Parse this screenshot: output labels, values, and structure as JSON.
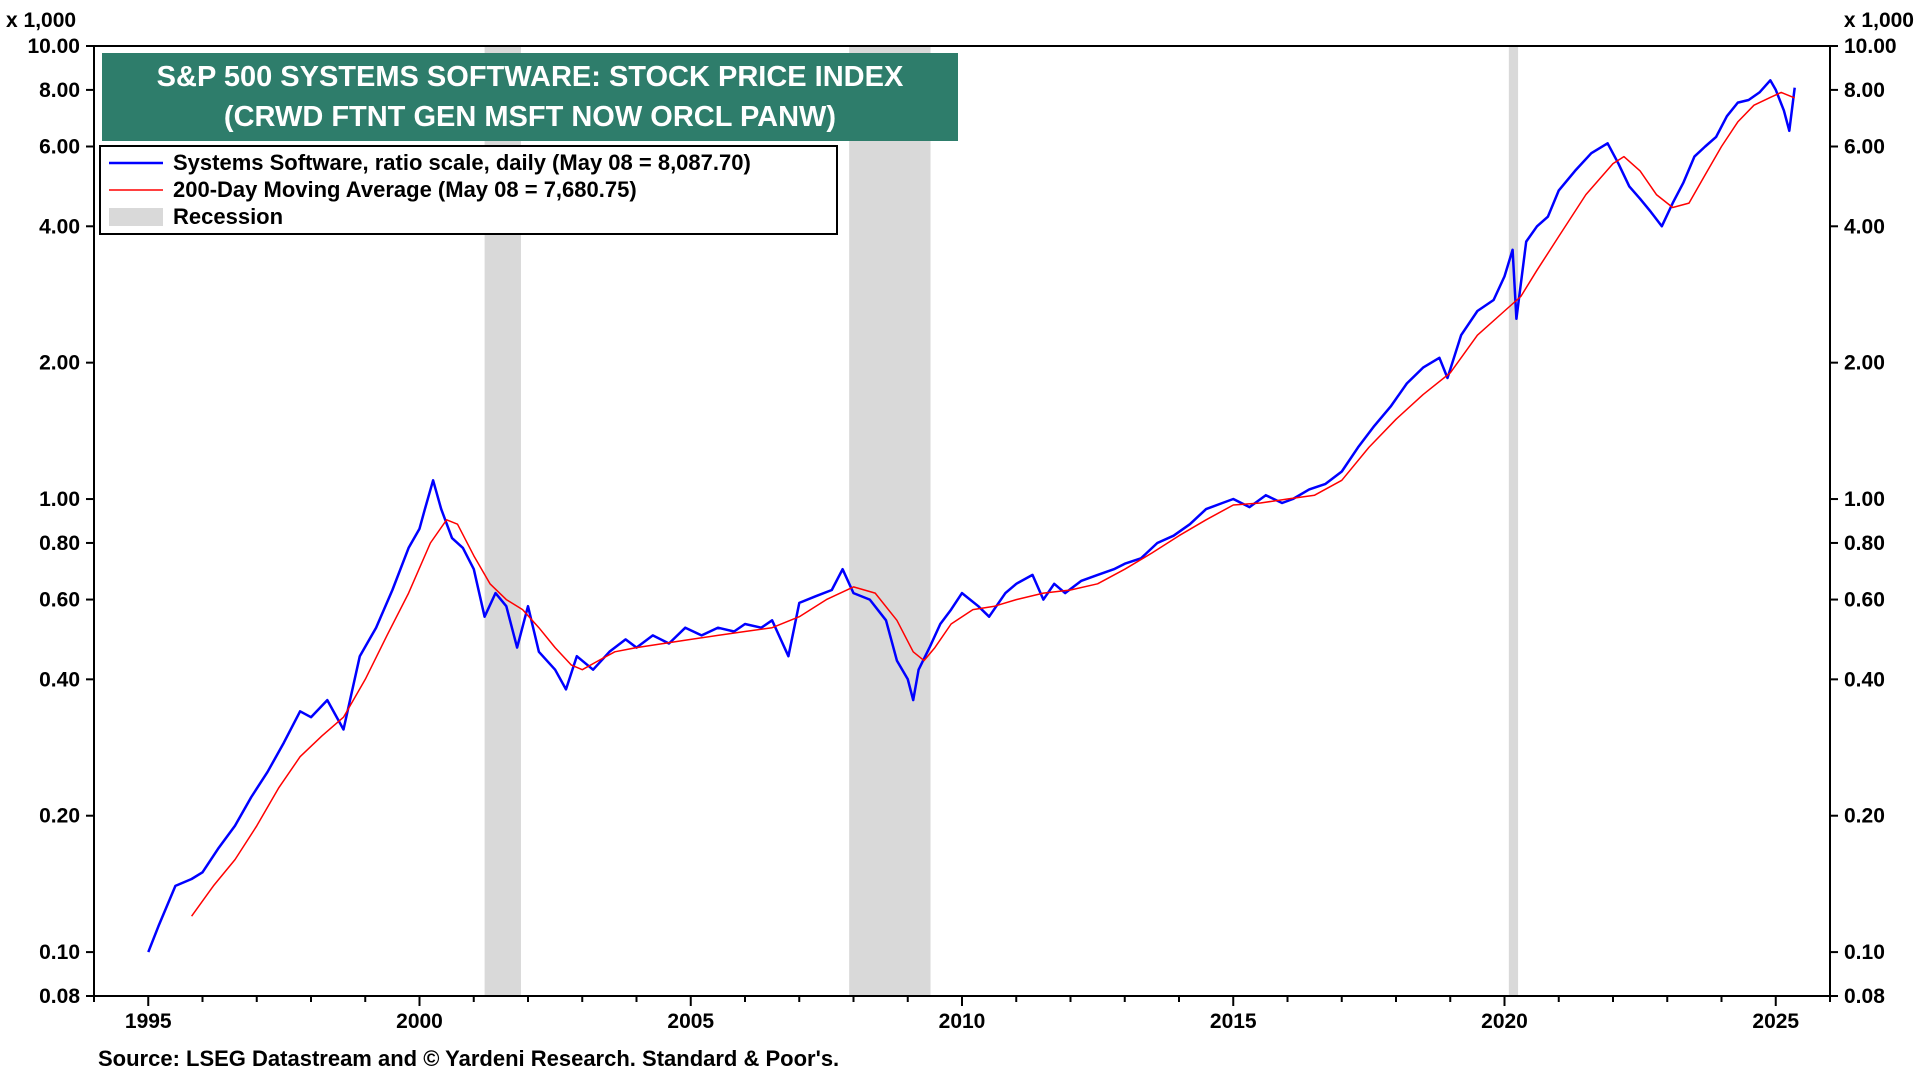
{
  "title_line1": "S&P 500 SYSTEMS SOFTWARE: STOCK PRICE INDEX",
  "title_line2": "(CRWD FTNT GEN MSFT NOW ORCL PANW)",
  "unit_label": "x 1,000",
  "source": "Source: LSEG Datastream and © Yardeni Research. Standard & Poor's.",
  "legend": {
    "series1": "Systems Software, ratio scale, daily (May 08 = 8,087.70)",
    "series2": "200-Day Moving Average (May 08 = 7,680.75)",
    "recession": "Recession"
  },
  "colors": {
    "series1": "#0000ff",
    "series2": "#ff0000",
    "recession": "#d9d9d9",
    "title_bg": "#2e7d6b"
  },
  "chart_data": {
    "type": "line",
    "title": "S&P 500 SYSTEMS SOFTWARE: STOCK PRICE INDEX (CRWD FTNT GEN MSFT NOW ORCL PANW)",
    "yscale": "log",
    "ylim": [
      0.08,
      10.0
    ],
    "xlim": [
      1994.0,
      2026.0
    ],
    "y_ticks": [
      "0.08",
      "0.10",
      "0.20",
      "0.40",
      "0.60",
      "0.80",
      "1.00",
      "2.00",
      "4.00",
      "6.00",
      "8.00",
      "10.00"
    ],
    "y_tick_values": [
      0.08,
      0.1,
      0.2,
      0.4,
      0.6,
      0.8,
      1.0,
      2.0,
      4.0,
      6.0,
      8.0,
      10.0
    ],
    "x_ticks": [
      "1995",
      "2000",
      "2005",
      "2010",
      "2015",
      "2020",
      "2025"
    ],
    "x_tick_values": [
      1995,
      2000,
      2005,
      2010,
      2015,
      2020,
      2025
    ],
    "recessions": [
      [
        2001.2,
        2001.87
      ],
      [
        2007.92,
        2009.42
      ],
      [
        2020.08,
        2020.25
      ]
    ],
    "legend_position": "top-left",
    "series": [
      {
        "name": "Systems Software, ratio scale, daily (May 08 = 8,087.70)",
        "color": "#0000ff",
        "x": [
          1995.0,
          1995.2,
          1995.5,
          1995.8,
          1996.0,
          1996.3,
          1996.6,
          1996.9,
          1997.2,
          1997.5,
          1997.8,
          1998.0,
          1998.3,
          1998.6,
          1998.9,
          1999.2,
          1999.5,
          1999.8,
          2000.0,
          2000.1,
          2000.25,
          2000.4,
          2000.6,
          2000.8,
          2001.0,
          2001.2,
          2001.4,
          2001.6,
          2001.8,
          2002.0,
          2002.2,
          2002.5,
          2002.7,
          2002.9,
          2003.2,
          2003.5,
          2003.8,
          2004.0,
          2004.3,
          2004.6,
          2004.9,
          2005.2,
          2005.5,
          2005.8,
          2006.0,
          2006.3,
          2006.5,
          2006.8,
          2007.0,
          2007.3,
          2007.6,
          2007.8,
          2008.0,
          2008.3,
          2008.6,
          2008.8,
          2009.0,
          2009.1,
          2009.2,
          2009.4,
          2009.6,
          2009.8,
          2010.0,
          2010.3,
          2010.5,
          2010.8,
          2011.0,
          2011.3,
          2011.5,
          2011.7,
          2011.9,
          2012.2,
          2012.5,
          2012.8,
          2013.0,
          2013.3,
          2013.6,
          2013.9,
          2014.2,
          2014.5,
          2014.8,
          2015.0,
          2015.3,
          2015.6,
          2015.9,
          2016.1,
          2016.4,
          2016.7,
          2017.0,
          2017.3,
          2017.6,
          2017.9,
          2018.2,
          2018.5,
          2018.8,
          2018.95,
          2019.2,
          2019.5,
          2019.8,
          2020.0,
          2020.15,
          2020.22,
          2020.4,
          2020.6,
          2020.8,
          2021.0,
          2021.3,
          2021.6,
          2021.9,
          2022.1,
          2022.3,
          2022.5,
          2022.7,
          2022.9,
          2023.1,
          2023.3,
          2023.5,
          2023.7,
          2023.9,
          2024.1,
          2024.3,
          2024.5,
          2024.7,
          2024.9,
          2025.0,
          2025.15,
          2025.25,
          2025.35
        ],
        "y": [
          0.1,
          0.115,
          0.14,
          0.145,
          0.15,
          0.17,
          0.19,
          0.22,
          0.25,
          0.29,
          0.34,
          0.33,
          0.36,
          0.31,
          0.45,
          0.52,
          0.63,
          0.78,
          0.86,
          0.95,
          1.1,
          0.95,
          0.82,
          0.78,
          0.7,
          0.55,
          0.62,
          0.58,
          0.47,
          0.58,
          0.46,
          0.42,
          0.38,
          0.45,
          0.42,
          0.46,
          0.49,
          0.47,
          0.5,
          0.48,
          0.52,
          0.5,
          0.52,
          0.51,
          0.53,
          0.52,
          0.54,
          0.45,
          0.59,
          0.61,
          0.63,
          0.7,
          0.62,
          0.6,
          0.54,
          0.44,
          0.4,
          0.36,
          0.42,
          0.47,
          0.53,
          0.57,
          0.62,
          0.58,
          0.55,
          0.62,
          0.65,
          0.68,
          0.6,
          0.65,
          0.62,
          0.66,
          0.68,
          0.7,
          0.72,
          0.74,
          0.8,
          0.83,
          0.88,
          0.95,
          0.98,
          1.0,
          0.96,
          1.02,
          0.98,
          1.0,
          1.05,
          1.08,
          1.15,
          1.3,
          1.45,
          1.6,
          1.8,
          1.95,
          2.05,
          1.85,
          2.3,
          2.6,
          2.75,
          3.1,
          3.55,
          2.5,
          3.7,
          4.0,
          4.2,
          4.8,
          5.3,
          5.8,
          6.1,
          5.5,
          4.9,
          4.6,
          4.3,
          4.0,
          4.5,
          5.0,
          5.7,
          6.0,
          6.3,
          7.0,
          7.5,
          7.6,
          7.9,
          8.4,
          8.0,
          7.2,
          6.5,
          8.09
        ]
      },
      {
        "name": "200-Day Moving Average (May 08 = 7,680.75)",
        "color": "#ff0000",
        "x": [
          1995.8,
          1996.2,
          1996.6,
          1997.0,
          1997.4,
          1997.8,
          1998.2,
          1998.6,
          1999.0,
          1999.4,
          1999.8,
          2000.2,
          2000.5,
          2000.7,
          2001.0,
          2001.3,
          2001.6,
          2001.9,
          2002.2,
          2002.5,
          2002.8,
          2003.0,
          2003.3,
          2003.6,
          2004.0,
          2004.5,
          2005.0,
          2005.5,
          2006.0,
          2006.5,
          2007.0,
          2007.5,
          2008.0,
          2008.4,
          2008.8,
          2009.1,
          2009.3,
          2009.5,
          2009.8,
          2010.2,
          2010.6,
          2011.0,
          2011.5,
          2012.0,
          2012.5,
          2013.0,
          2013.5,
          2014.0,
          2014.5,
          2015.0,
          2015.5,
          2016.0,
          2016.5,
          2017.0,
          2017.5,
          2018.0,
          2018.5,
          2019.0,
          2019.5,
          2020.0,
          2020.3,
          2020.6,
          2021.0,
          2021.5,
          2022.0,
          2022.2,
          2022.5,
          2022.8,
          2023.1,
          2023.4,
          2023.7,
          2024.0,
          2024.3,
          2024.6,
          2024.9,
          2025.1,
          2025.35
        ],
        "y": [
          0.12,
          0.14,
          0.16,
          0.19,
          0.23,
          0.27,
          0.3,
          0.33,
          0.4,
          0.5,
          0.62,
          0.8,
          0.9,
          0.88,
          0.75,
          0.65,
          0.6,
          0.57,
          0.52,
          0.47,
          0.43,
          0.42,
          0.44,
          0.46,
          0.47,
          0.48,
          0.49,
          0.5,
          0.51,
          0.52,
          0.55,
          0.6,
          0.64,
          0.62,
          0.54,
          0.46,
          0.44,
          0.47,
          0.53,
          0.57,
          0.58,
          0.6,
          0.62,
          0.63,
          0.65,
          0.7,
          0.76,
          0.83,
          0.9,
          0.97,
          0.98,
          1.0,
          1.02,
          1.1,
          1.3,
          1.5,
          1.7,
          1.9,
          2.3,
          2.6,
          2.8,
          3.2,
          3.8,
          4.7,
          5.5,
          5.7,
          5.3,
          4.7,
          4.4,
          4.5,
          5.2,
          6.0,
          6.8,
          7.4,
          7.7,
          7.9,
          7.68
        ]
      }
    ]
  }
}
